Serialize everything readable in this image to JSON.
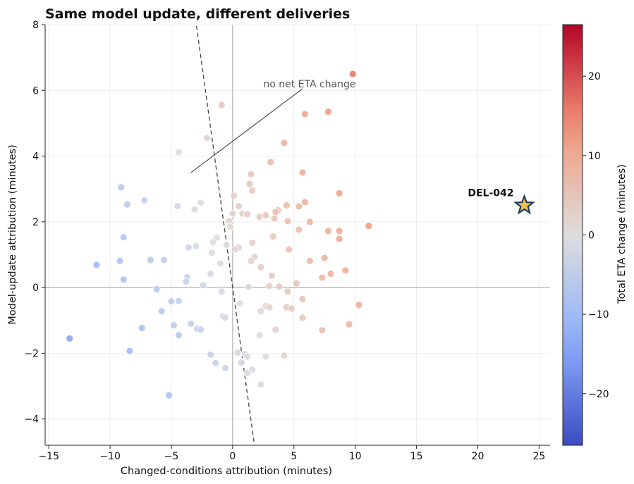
{
  "chart_data": {
    "type": "scatter",
    "title": "Same model update, different deliveries",
    "xlabel": "Changed-conditions attribution (minutes)",
    "ylabel": "Model-update attribution (minutes)",
    "xlim": [
      -15.3,
      25.9
    ],
    "ylim": [
      -4.8,
      8.0
    ],
    "xticks": [
      -15,
      -10,
      -5,
      0,
      5,
      10,
      15,
      20,
      25
    ],
    "yticks": [
      -4,
      -2,
      0,
      2,
      4,
      6,
      8
    ],
    "grid": true,
    "reference_lines": {
      "x_zero": true,
      "y_zero": true,
      "dashed_line_slope": -2.7
    },
    "annotation": {
      "text": "no net ETA change",
      "text_at": [
        2.5,
        6.2
      ],
      "arrow_from": [
        5.7,
        6.05
      ],
      "arrow_to": [
        -3.4,
        3.5
      ]
    },
    "highlight": {
      "label": "DEL-042",
      "x": 23.8,
      "y": 2.5,
      "marker": "star",
      "color": "#f2c14e"
    },
    "colorbar": {
      "label": "Total ETA change (minutes)",
      "range": [
        -26.5,
        26.5
      ],
      "ticks": [
        -20,
        -10,
        0,
        10,
        20
      ],
      "colormap": "coolwarm"
    },
    "points": [
      {
        "x": 9.8,
        "y": 6.5
      },
      {
        "x": -0.9,
        "y": 5.55
      },
      {
        "x": 5.9,
        "y": 5.28
      },
      {
        "x": 7.8,
        "y": 5.35
      },
      {
        "x": -2.1,
        "y": 4.55
      },
      {
        "x": 4.2,
        "y": 4.4
      },
      {
        "x": -4.4,
        "y": 4.12
      },
      {
        "x": 3.1,
        "y": 3.82
      },
      {
        "x": 1.5,
        "y": 3.45
      },
      {
        "x": 5.7,
        "y": 3.5
      },
      {
        "x": 1.4,
        "y": 3.15
      },
      {
        "x": 1.6,
        "y": 2.95
      },
      {
        "x": -9.1,
        "y": 3.05
      },
      {
        "x": 8.7,
        "y": 2.87
      },
      {
        "x": 0.1,
        "y": 2.8
      },
      {
        "x": -7.2,
        "y": 2.65
      },
      {
        "x": -8.6,
        "y": 2.53
      },
      {
        "x": -2.6,
        "y": 2.58
      },
      {
        "x": 5.9,
        "y": 2.6
      },
      {
        "x": -4.5,
        "y": 2.48
      },
      {
        "x": -3.1,
        "y": 2.38
      },
      {
        "x": 0.5,
        "y": 2.48
      },
      {
        "x": 4.4,
        "y": 2.5
      },
      {
        "x": 5.4,
        "y": 2.47
      },
      {
        "x": 3.7,
        "y": 2.35
      },
      {
        "x": 3.5,
        "y": 2.3
      },
      {
        "x": 0.0,
        "y": 2.25
      },
      {
        "x": 0.8,
        "y": 2.25
      },
      {
        "x": 1.2,
        "y": 2.23
      },
      {
        "x": 2.2,
        "y": 2.15
      },
      {
        "x": 2.7,
        "y": 2.2
      },
      {
        "x": 3.4,
        "y": 2.1
      },
      {
        "x": -0.3,
        "y": 2.03
      },
      {
        "x": 4.5,
        "y": 2.02
      },
      {
        "x": 6.3,
        "y": 2.0
      },
      {
        "x": 11.1,
        "y": 1.88
      },
      {
        "x": -0.2,
        "y": 1.85
      },
      {
        "x": 5.4,
        "y": 1.76
      },
      {
        "x": 7.8,
        "y": 1.72
      },
      {
        "x": 8.7,
        "y": 1.72
      },
      {
        "x": 3.3,
        "y": 1.55
      },
      {
        "x": -8.9,
        "y": 1.53
      },
      {
        "x": -1.3,
        "y": 1.52
      },
      {
        "x": 8.7,
        "y": 1.48
      },
      {
        "x": -1.6,
        "y": 1.38
      },
      {
        "x": 1.6,
        "y": 1.36
      },
      {
        "x": -0.5,
        "y": 1.3
      },
      {
        "x": -3.0,
        "y": 1.26
      },
      {
        "x": -3.6,
        "y": 1.22
      },
      {
        "x": 0.5,
        "y": 1.22
      },
      {
        "x": 0.2,
        "y": 1.16
      },
      {
        "x": 4.6,
        "y": 1.16
      },
      {
        "x": -1.7,
        "y": 1.06
      },
      {
        "x": 1.8,
        "y": 0.93
      },
      {
        "x": 7.5,
        "y": 0.9
      },
      {
        "x": -6.7,
        "y": 0.84
      },
      {
        "x": -5.6,
        "y": 0.84
      },
      {
        "x": -9.2,
        "y": 0.81
      },
      {
        "x": 1.5,
        "y": 0.81
      },
      {
        "x": 6.3,
        "y": 0.81
      },
      {
        "x": -11.1,
        "y": 0.69
      },
      {
        "x": -1.0,
        "y": 0.73
      },
      {
        "x": 2.3,
        "y": 0.62
      },
      {
        "x": 9.2,
        "y": 0.52
      },
      {
        "x": -1.8,
        "y": 0.42
      },
      {
        "x": 8.0,
        "y": 0.42
      },
      {
        "x": 3.2,
        "y": 0.36
      },
      {
        "x": -3.7,
        "y": 0.32
      },
      {
        "x": 7.3,
        "y": 0.3
      },
      {
        "x": -8.9,
        "y": 0.24
      },
      {
        "x": -3.8,
        "y": 0.18
      },
      {
        "x": 5.2,
        "y": 0.13
      },
      {
        "x": -2.4,
        "y": 0.07
      },
      {
        "x": 3.0,
        "y": 0.05
      },
      {
        "x": 3.8,
        "y": 0.03
      },
      {
        "x": 1.3,
        "y": 0.02
      },
      {
        "x": -6.2,
        "y": -0.05
      },
      {
        "x": -0.9,
        "y": -0.12
      },
      {
        "x": 4.5,
        "y": -0.12
      },
      {
        "x": 5.7,
        "y": -0.35
      },
      {
        "x": -5.0,
        "y": -0.42
      },
      {
        "x": -4.4,
        "y": -0.41
      },
      {
        "x": 0.6,
        "y": -0.48
      },
      {
        "x": 10.3,
        "y": -0.53
      },
      {
        "x": 2.7,
        "y": -0.56
      },
      {
        "x": 3.0,
        "y": -0.6
      },
      {
        "x": 4.4,
        "y": -0.6
      },
      {
        "x": 4.8,
        "y": -0.64
      },
      {
        "x": -5.8,
        "y": -0.72
      },
      {
        "x": 2.3,
        "y": -0.72
      },
      {
        "x": -0.8,
        "y": -0.88
      },
      {
        "x": -0.6,
        "y": -0.92
      },
      {
        "x": 5.7,
        "y": -0.92
      },
      {
        "x": -3.4,
        "y": -1.1
      },
      {
        "x": 9.5,
        "y": -1.12
      },
      {
        "x": -4.8,
        "y": -1.15
      },
      {
        "x": -7.4,
        "y": -1.23
      },
      {
        "x": -2.9,
        "y": -1.26
      },
      {
        "x": -2.6,
        "y": -1.28
      },
      {
        "x": 3.5,
        "y": -1.28
      },
      {
        "x": 7.3,
        "y": -1.3
      },
      {
        "x": 2.2,
        "y": -1.45
      },
      {
        "x": -4.4,
        "y": -1.45
      },
      {
        "x": -13.3,
        "y": -1.55
      },
      {
        "x": -8.4,
        "y": -1.93
      },
      {
        "x": 0.4,
        "y": -1.98
      },
      {
        "x": 1.0,
        "y": -2.02
      },
      {
        "x": -1.8,
        "y": -2.04
      },
      {
        "x": 4.2,
        "y": -2.07
      },
      {
        "x": 1.2,
        "y": -2.1
      },
      {
        "x": 2.7,
        "y": -2.1
      },
      {
        "x": 0.7,
        "y": -2.28
      },
      {
        "x": -1.4,
        "y": -2.3
      },
      {
        "x": -0.6,
        "y": -2.45
      },
      {
        "x": 1.6,
        "y": -2.5
      },
      {
        "x": 1.2,
        "y": -2.6
      },
      {
        "x": 2.3,
        "y": -2.95
      },
      {
        "x": -5.2,
        "y": -3.28
      }
    ]
  }
}
